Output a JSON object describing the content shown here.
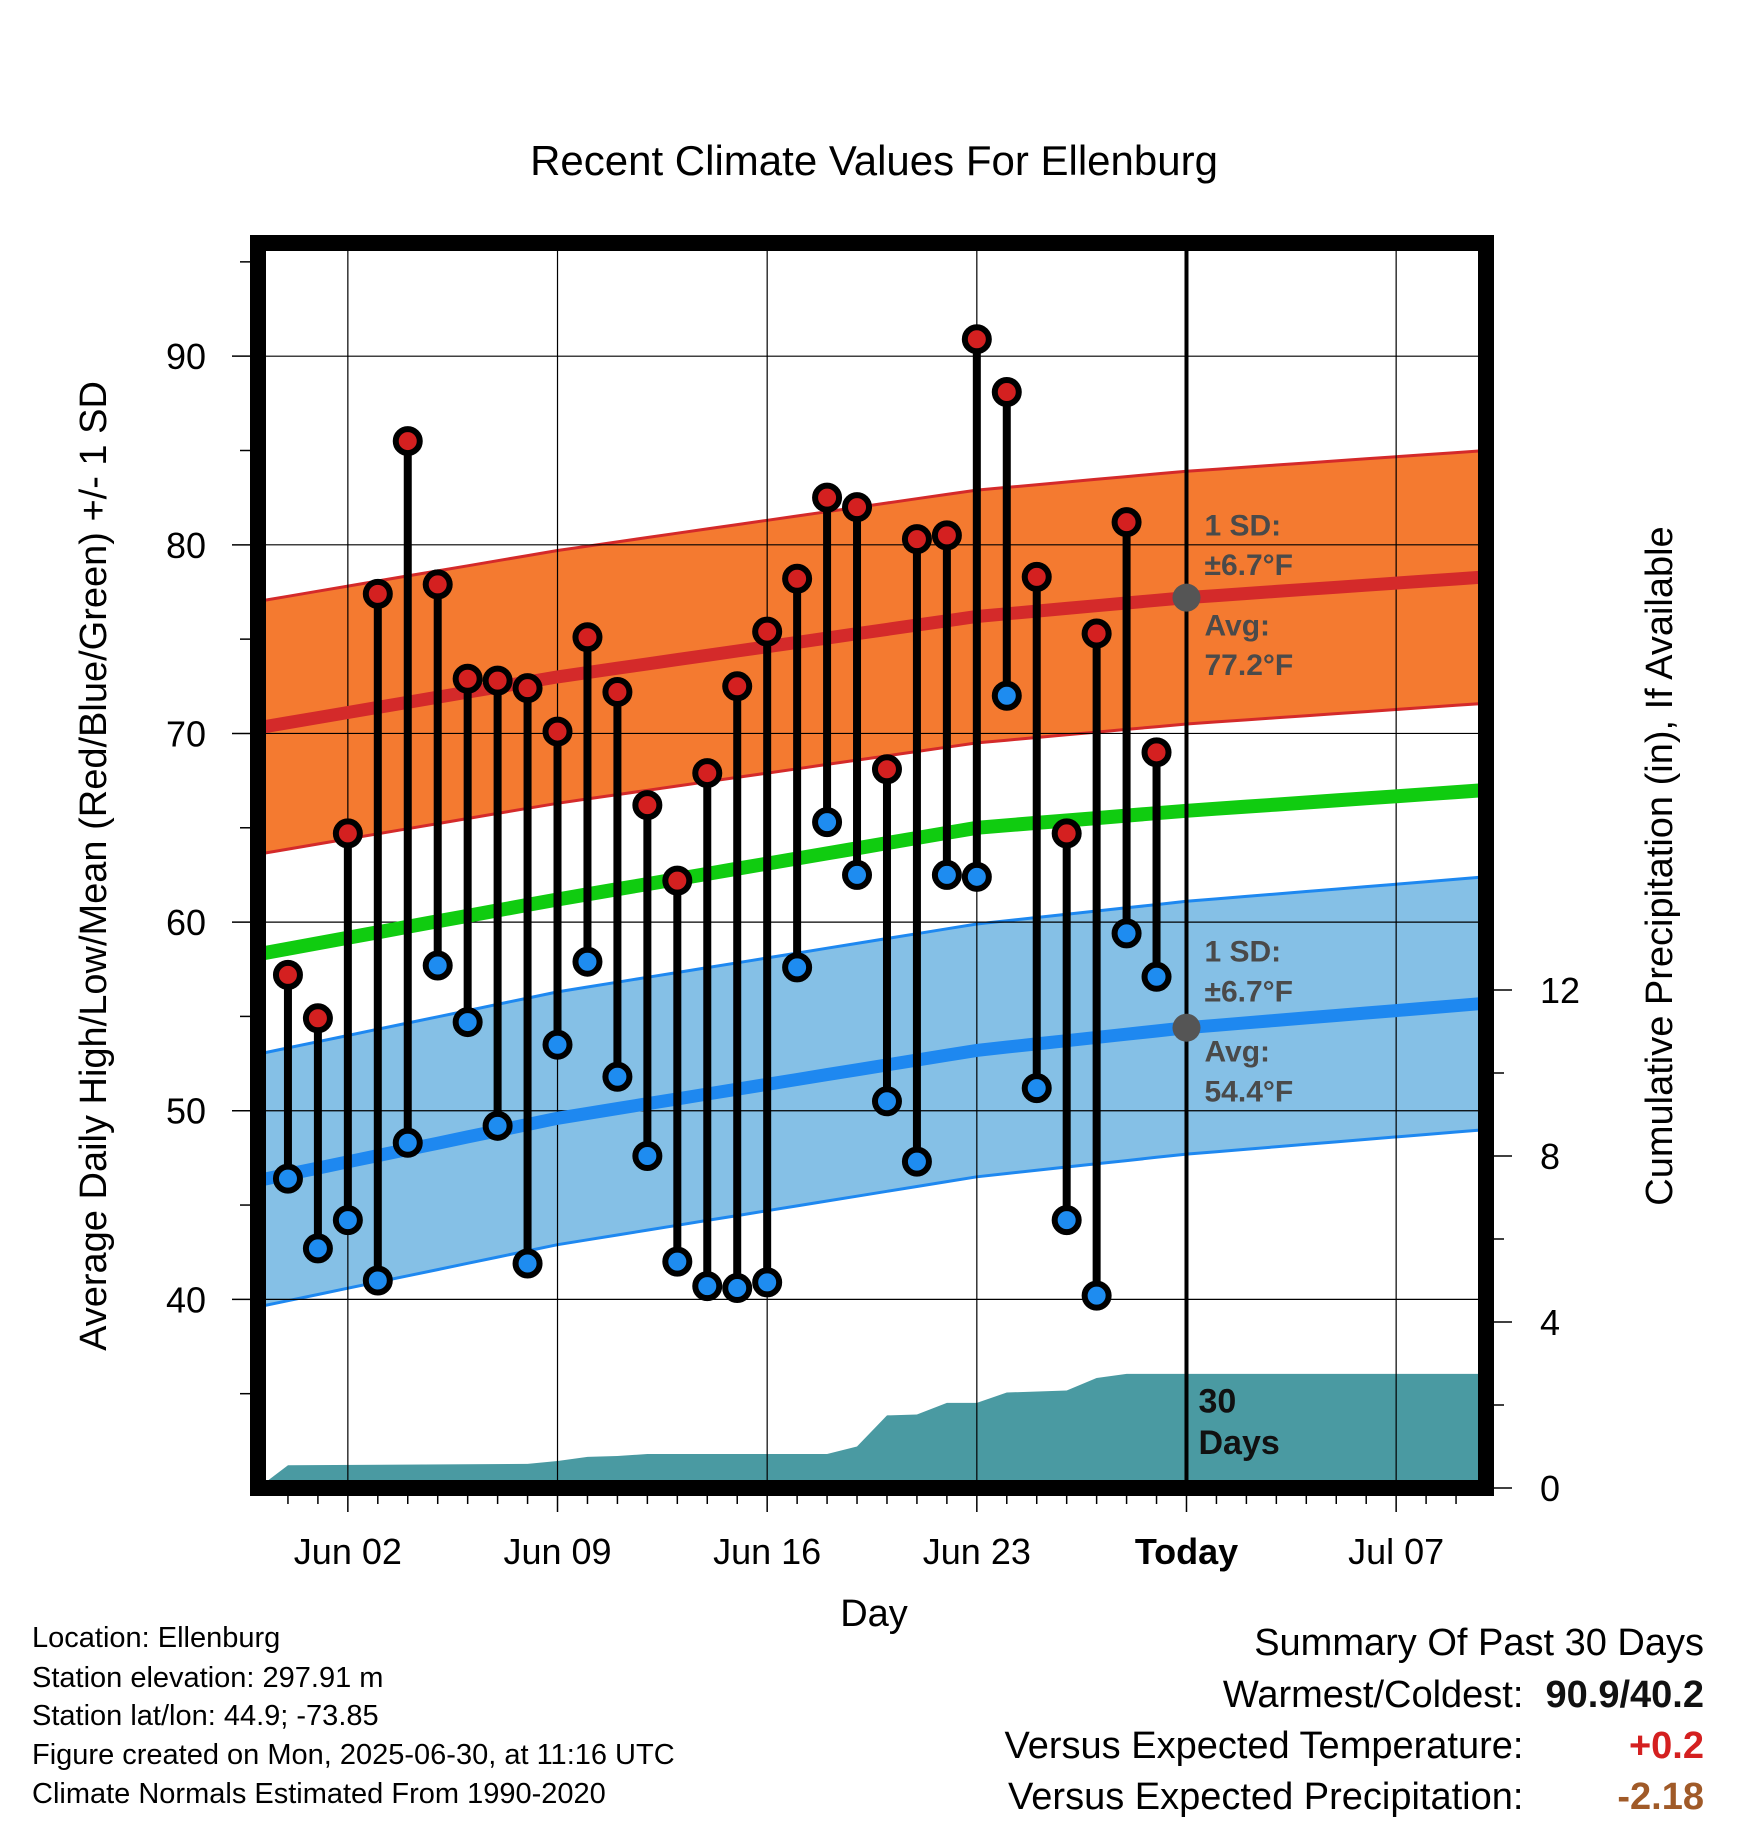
{
  "chart_data": {
    "type": "line",
    "title": "Recent Climate Values For Ellenburg",
    "xlabel": "Day",
    "ylabel": "Average Daily High/Low/Mean (Red/Blue/Green) +/- 1 SD",
    "y2label": "Cumulative Precipitation (in), If Available",
    "ylim": [
      30,
      96
    ],
    "y2lim": [
      0,
      30
    ],
    "x_range": [
      "2025-05-30",
      "2025-07-10"
    ],
    "x_ticks": [
      {
        "date": "2025-06-02",
        "label": "Jun 02"
      },
      {
        "date": "2025-06-09",
        "label": "Jun 09"
      },
      {
        "date": "2025-06-16",
        "label": "Jun 16"
      },
      {
        "date": "2025-06-23",
        "label": "Jun 23"
      },
      {
        "date": "2025-06-30",
        "label": "Today"
      },
      {
        "date": "2025-07-07",
        "label": "Jul 07"
      }
    ],
    "y_ticks": [
      40,
      50,
      60,
      70,
      80,
      90
    ],
    "y2_ticks": [
      0,
      4,
      8,
      12
    ],
    "grid": true,
    "colors": {
      "high_band": "#f47a30",
      "high_line": "#d42a2a",
      "low_band": "#85c0e6",
      "low_line": "#1e88f0",
      "mean_line": "#10cc10",
      "precip": "#4a9aa2",
      "high_point": "#d42020",
      "low_point": "#1e8cf0",
      "today_marker": "#555555"
    },
    "normals": {
      "dates": [
        "2025-05-30",
        "2025-06-09",
        "2025-06-23",
        "2025-06-30",
        "2025-07-10"
      ],
      "avg_high": [
        70.3,
        73.0,
        76.2,
        77.2,
        78.3
      ],
      "avg_low": [
        46.3,
        49.6,
        53.2,
        54.4,
        55.7
      ],
      "avg_mean": [
        58.3,
        61.2,
        65.0,
        65.9,
        67.0
      ],
      "sd": 6.7
    },
    "series": [
      {
        "name": "High",
        "dates": [
          "2025-05-31",
          "2025-06-01",
          "2025-06-02",
          "2025-06-03",
          "2025-06-04",
          "2025-06-05",
          "2025-06-06",
          "2025-06-07",
          "2025-06-08",
          "2025-06-09",
          "2025-06-10",
          "2025-06-11",
          "2025-06-12",
          "2025-06-13",
          "2025-06-14",
          "2025-06-15",
          "2025-06-16",
          "2025-06-17",
          "2025-06-18",
          "2025-06-19",
          "2025-06-20",
          "2025-06-21",
          "2025-06-22",
          "2025-06-23",
          "2025-06-24",
          "2025-06-25",
          "2025-06-26",
          "2025-06-27",
          "2025-06-28",
          "2025-06-29"
        ],
        "values": [
          57.2,
          54.9,
          64.7,
          77.4,
          85.5,
          77.9,
          72.9,
          72.8,
          72.4,
          70.1,
          75.1,
          72.2,
          66.2,
          62.2,
          67.9,
          72.5,
          75.4,
          78.2,
          82.5,
          82.0,
          68.1,
          80.3,
          80.5,
          90.9,
          88.1,
          78.3,
          64.7,
          75.3,
          81.2,
          69.0
        ]
      },
      {
        "name": "Low",
        "dates": [
          "2025-05-31",
          "2025-06-01",
          "2025-06-02",
          "2025-06-03",
          "2025-06-04",
          "2025-06-05",
          "2025-06-06",
          "2025-06-07",
          "2025-06-08",
          "2025-06-09",
          "2025-06-10",
          "2025-06-11",
          "2025-06-12",
          "2025-06-13",
          "2025-06-14",
          "2025-06-15",
          "2025-06-16",
          "2025-06-17",
          "2025-06-18",
          "2025-06-19",
          "2025-06-20",
          "2025-06-21",
          "2025-06-22",
          "2025-06-23",
          "2025-06-24",
          "2025-06-25",
          "2025-06-26",
          "2025-06-27",
          "2025-06-28",
          "2025-06-29"
        ],
        "values": [
          46.4,
          42.7,
          44.2,
          41.0,
          48.3,
          57.7,
          54.7,
          49.2,
          41.9,
          53.5,
          57.9,
          51.8,
          47.6,
          42.0,
          40.7,
          40.6,
          40.9,
          57.6,
          65.3,
          62.5,
          50.5,
          47.3,
          62.5,
          62.4,
          72.0,
          51.2,
          44.2,
          40.2,
          59.4,
          57.1
        ]
      }
    ],
    "precip": {
      "dates": [
        "2025-05-30",
        "2025-05-31",
        "2025-06-08",
        "2025-06-09",
        "2025-06-10",
        "2025-06-11",
        "2025-06-12",
        "2025-06-18",
        "2025-06-19",
        "2025-06-20",
        "2025-06-21",
        "2025-06-22",
        "2025-06-23",
        "2025-06-24",
        "2025-06-26",
        "2025-06-27",
        "2025-06-28",
        "2025-06-30",
        "2025-07-10"
      ],
      "values": [
        0.0,
        0.55,
        0.58,
        0.65,
        0.75,
        0.77,
        0.82,
        0.82,
        1.0,
        1.75,
        1.77,
        2.05,
        2.05,
        2.3,
        2.35,
        2.65,
        2.75,
        2.75,
        2.75
      ]
    },
    "annotations": {
      "high_sd": "1 SD:",
      "high_sd_val": "±6.7°F",
      "high_avg": "Avg:",
      "high_avg_val": "77.2°F",
      "low_sd": "1 SD:",
      "low_sd_val": "±6.7°F",
      "low_avg": "Avg:",
      "low_avg_val": "54.4°F",
      "days_num": "30",
      "days_word": "Days"
    }
  },
  "info": {
    "location": "Location: Ellenburg",
    "elevation": "Station elevation: 297.91 m",
    "latlon": "Station lat/lon: 44.9; -73.85",
    "created": "Figure created on Mon, 2025-06-30, at 11:16 UTC",
    "normals": "Climate Normals Estimated From 1990-2020"
  },
  "summary": {
    "title": "Summary Of Past 30 Days",
    "warmest_label": "Warmest/Coldest:",
    "warmest_value": "90.9/40.2",
    "temp_label": "Versus Expected Temperature:",
    "temp_value": "+0.2",
    "precip_label": "Versus Expected Precipitation:",
    "precip_value": "-2.18"
  }
}
